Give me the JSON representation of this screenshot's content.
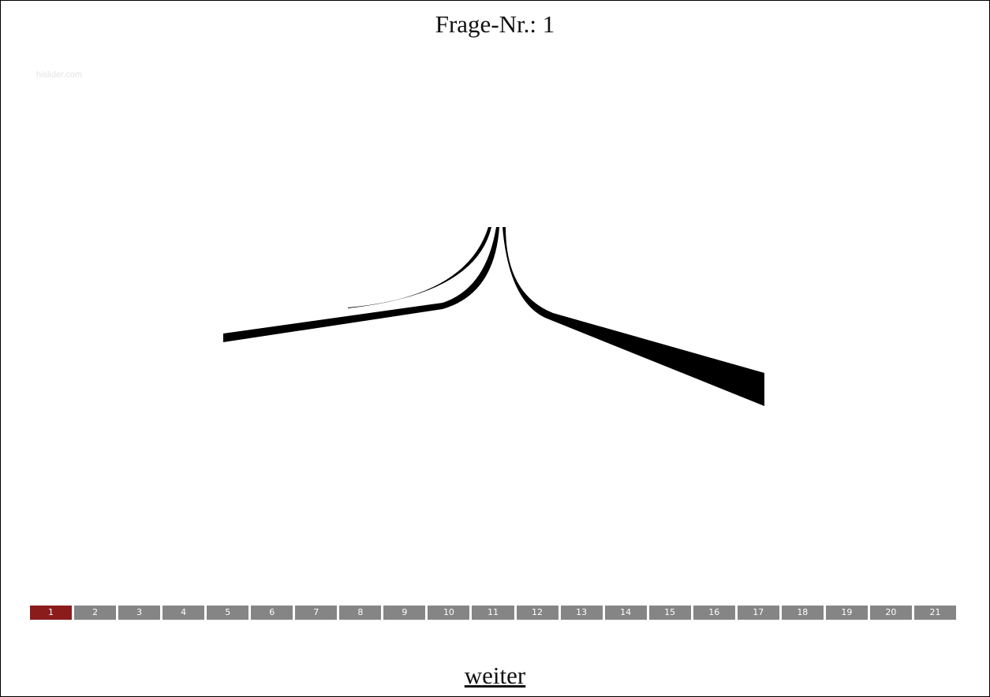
{
  "header": {
    "title": "Frage-Nr.: 1"
  },
  "watermark": "hislider.com",
  "progress": {
    "items": [
      "1",
      "2",
      "3",
      "4",
      "5",
      "6",
      "7",
      "8",
      "9",
      "10",
      "11",
      "12",
      "13",
      "14",
      "15",
      "16",
      "17",
      "18",
      "19",
      "20",
      "21"
    ]
  },
  "footer": {
    "next": "weiter"
  }
}
